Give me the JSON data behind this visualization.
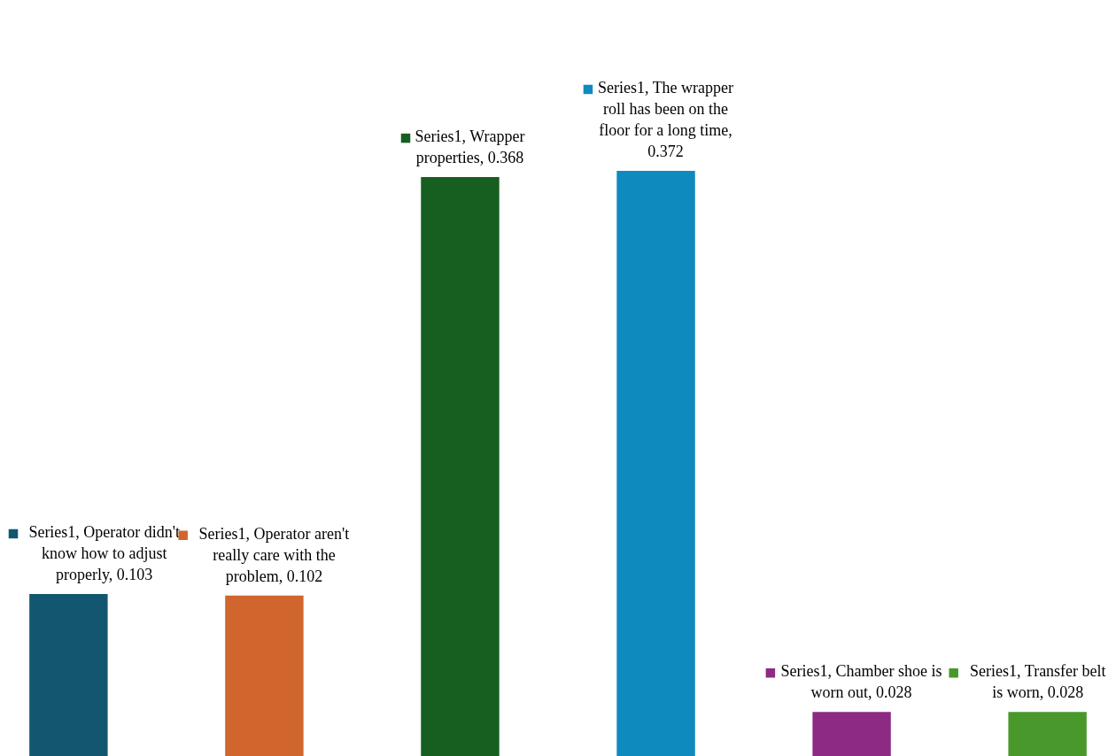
{
  "chart_data": {
    "type": "bar",
    "categories": [
      null,
      null,
      null,
      null,
      null,
      null
    ],
    "values": [
      0.103,
      0.102,
      0.368,
      0.372,
      0.028,
      0.028
    ],
    "colors": [
      "#13566f",
      "#d0652e",
      "#175e21",
      "#0f8abf",
      "#8d2a84",
      "#48982b"
    ],
    "value_labels": [
      "Series1, Operator didn't know how to adjust properly, 0.103",
      "Series1, Operator aren't really care with the problem, 0.102",
      "Series1, Wrapper properties, 0.368",
      "Series1, The wrapper roll has been on the floor for a long time, 0.372",
      "Series1, Chamber shoe is worn out, 0.028",
      "Series1, Transfer belt is worn, 0.028"
    ],
    "tick_labels": false,
    "grid": false
  }
}
